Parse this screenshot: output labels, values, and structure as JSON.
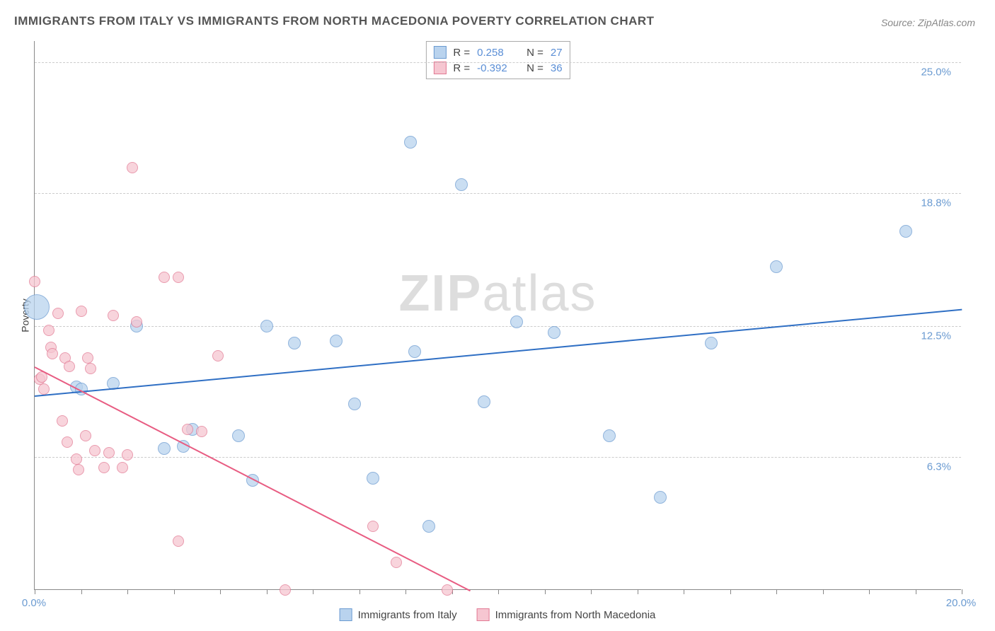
{
  "title": "IMMIGRANTS FROM ITALY VS IMMIGRANTS FROM NORTH MACEDONIA POVERTY CORRELATION CHART",
  "source": "Source: ZipAtlas.com",
  "ylabel": "Poverty",
  "watermark_a": "ZIP",
  "watermark_b": "atlas",
  "xlim": [
    0,
    20
  ],
  "ylim": [
    0,
    26
  ],
  "x_ticks_vis": [
    0,
    1,
    2,
    3,
    4,
    5,
    6,
    7,
    8,
    9,
    10,
    11,
    12,
    13,
    14,
    15,
    16,
    17,
    18,
    19,
    20
  ],
  "x_labels": [
    {
      "v": 0,
      "t": "0.0%"
    },
    {
      "v": 20,
      "t": "20.0%"
    }
  ],
  "y_grid": [
    {
      "v": 6.3,
      "t": "6.3%"
    },
    {
      "v": 12.5,
      "t": "12.5%"
    },
    {
      "v": 18.8,
      "t": "18.8%"
    },
    {
      "v": 25.0,
      "t": "25.0%"
    }
  ],
  "series": [
    {
      "name": "italy",
      "label": "Immigrants from Italy",
      "fill": "#b9d3ee",
      "stroke": "#6b9bd1",
      "line_color": "#2f6fc4",
      "r_label": "R =",
      "r_value": "0.258",
      "n_label": "N =",
      "n_value": "27",
      "trend": {
        "x1": 0,
        "y1": 9.2,
        "x2": 20,
        "y2": 13.3
      },
      "points": [
        {
          "x": 0.05,
          "y": 13.4,
          "r": 18
        },
        {
          "x": 0.9,
          "y": 9.6,
          "r": 9
        },
        {
          "x": 1.0,
          "y": 9.5,
          "r": 9
        },
        {
          "x": 1.7,
          "y": 9.8,
          "r": 9
        },
        {
          "x": 2.2,
          "y": 12.5,
          "r": 9
        },
        {
          "x": 2.8,
          "y": 6.7,
          "r": 9
        },
        {
          "x": 3.2,
          "y": 6.8,
          "r": 9
        },
        {
          "x": 3.4,
          "y": 7.6,
          "r": 9
        },
        {
          "x": 4.4,
          "y": 7.3,
          "r": 9
        },
        {
          "x": 4.7,
          "y": 5.2,
          "r": 9
        },
        {
          "x": 5.0,
          "y": 12.5,
          "r": 9
        },
        {
          "x": 5.6,
          "y": 11.7,
          "r": 9
        },
        {
          "x": 6.5,
          "y": 11.8,
          "r": 9
        },
        {
          "x": 6.9,
          "y": 8.8,
          "r": 9
        },
        {
          "x": 7.3,
          "y": 5.3,
          "r": 9
        },
        {
          "x": 8.1,
          "y": 21.2,
          "r": 9
        },
        {
          "x": 8.2,
          "y": 11.3,
          "r": 9
        },
        {
          "x": 8.5,
          "y": 3.0,
          "r": 9
        },
        {
          "x": 9.2,
          "y": 19.2,
          "r": 9
        },
        {
          "x": 9.7,
          "y": 8.9,
          "r": 9
        },
        {
          "x": 10.4,
          "y": 12.7,
          "r": 9
        },
        {
          "x": 11.2,
          "y": 12.2,
          "r": 9
        },
        {
          "x": 12.4,
          "y": 7.3,
          "r": 9
        },
        {
          "x": 13.5,
          "y": 4.4,
          "r": 9
        },
        {
          "x": 14.6,
          "y": 11.7,
          "r": 9
        },
        {
          "x": 16.0,
          "y": 15.3,
          "r": 9
        },
        {
          "x": 18.8,
          "y": 17.0,
          "r": 9
        }
      ]
    },
    {
      "name": "macedonia",
      "label": "Immigrants from North Macedonia",
      "fill": "#f6c6d1",
      "stroke": "#e27a94",
      "line_color": "#e85c82",
      "r_label": "R =",
      "r_value": "-0.392",
      "n_label": "N =",
      "n_value": "36",
      "trend": {
        "x1": 0,
        "y1": 10.6,
        "x2": 9.4,
        "y2": 0
      },
      "points": [
        {
          "x": 0.0,
          "y": 14.6,
          "r": 8
        },
        {
          "x": 0.1,
          "y": 10.0,
          "r": 8
        },
        {
          "x": 0.15,
          "y": 10.1,
          "r": 8
        },
        {
          "x": 0.2,
          "y": 9.5,
          "r": 8
        },
        {
          "x": 0.3,
          "y": 12.3,
          "r": 8
        },
        {
          "x": 0.35,
          "y": 11.5,
          "r": 8
        },
        {
          "x": 0.38,
          "y": 11.2,
          "r": 8
        },
        {
          "x": 0.5,
          "y": 13.1,
          "r": 8
        },
        {
          "x": 0.6,
          "y": 8.0,
          "r": 8
        },
        {
          "x": 0.65,
          "y": 11.0,
          "r": 8
        },
        {
          "x": 0.7,
          "y": 7.0,
          "r": 8
        },
        {
          "x": 0.75,
          "y": 10.6,
          "r": 8
        },
        {
          "x": 0.9,
          "y": 6.2,
          "r": 8
        },
        {
          "x": 0.95,
          "y": 5.7,
          "r": 8
        },
        {
          "x": 1.0,
          "y": 13.2,
          "r": 8
        },
        {
          "x": 1.1,
          "y": 7.3,
          "r": 8
        },
        {
          "x": 1.15,
          "y": 11.0,
          "r": 8
        },
        {
          "x": 1.2,
          "y": 10.5,
          "r": 8
        },
        {
          "x": 1.3,
          "y": 6.6,
          "r": 8
        },
        {
          "x": 1.5,
          "y": 5.8,
          "r": 8
        },
        {
          "x": 1.6,
          "y": 6.5,
          "r": 8
        },
        {
          "x": 1.7,
          "y": 13.0,
          "r": 8
        },
        {
          "x": 1.9,
          "y": 5.8,
          "r": 8
        },
        {
          "x": 2.0,
          "y": 6.4,
          "r": 8
        },
        {
          "x": 2.2,
          "y": 12.7,
          "r": 8
        },
        {
          "x": 2.1,
          "y": 20.0,
          "r": 8
        },
        {
          "x": 2.8,
          "y": 14.8,
          "r": 8
        },
        {
          "x": 3.1,
          "y": 14.8,
          "r": 8
        },
        {
          "x": 3.1,
          "y": 2.3,
          "r": 8
        },
        {
          "x": 3.3,
          "y": 7.6,
          "r": 8
        },
        {
          "x": 3.6,
          "y": 7.5,
          "r": 8
        },
        {
          "x": 3.95,
          "y": 11.1,
          "r": 8
        },
        {
          "x": 5.4,
          "y": 0.0,
          "r": 8
        },
        {
          "x": 7.3,
          "y": 3.0,
          "r": 8
        },
        {
          "x": 7.8,
          "y": 1.3,
          "r": 8
        },
        {
          "x": 8.9,
          "y": 0.0,
          "r": 8
        }
      ]
    }
  ]
}
